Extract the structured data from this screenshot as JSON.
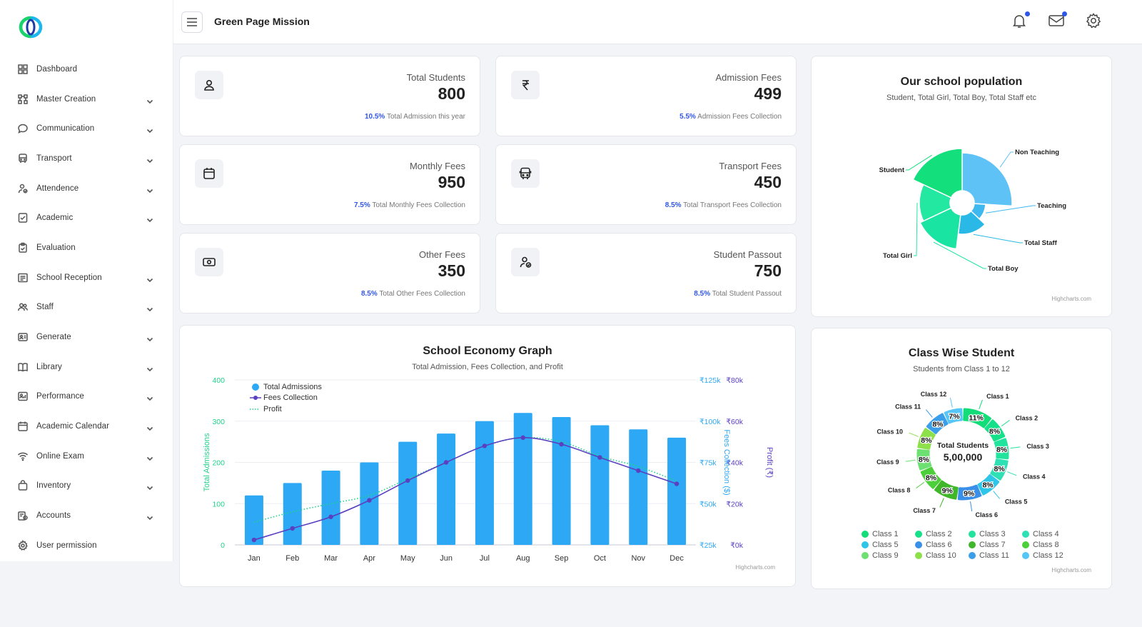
{
  "app": {
    "title": "Green Page Mission"
  },
  "colors": {
    "accent": "#2f56e8",
    "bar": "#2da8f4",
    "fees": "#5a3fc0",
    "profit": "#1fd48a",
    "admAxis": "#1fd48a",
    "feeAxis": "#2da8f4",
    "profitAxis": "#5a3fc0"
  },
  "sidebar": {
    "items": [
      {
        "label": "Dashboard",
        "icon": "grid-icon",
        "chev": false
      },
      {
        "label": "Master Creation",
        "icon": "hierarchy-icon",
        "chev": true
      },
      {
        "label": "Communication",
        "icon": "chat-icon",
        "chev": true
      },
      {
        "label": "Transport",
        "icon": "bus-icon",
        "chev": true
      },
      {
        "label": "Attendence",
        "icon": "user-check-icon",
        "chev": true
      },
      {
        "label": "Academic",
        "icon": "checklist-icon",
        "chev": true
      },
      {
        "label": "Evaluation",
        "icon": "clipboard-icon",
        "chev": false
      },
      {
        "label": "School Reception",
        "icon": "reception-icon",
        "chev": true
      },
      {
        "label": "Staff",
        "icon": "users-icon",
        "chev": true
      },
      {
        "label": "Generate",
        "icon": "id-card-icon",
        "chev": true
      },
      {
        "label": "Library",
        "icon": "book-icon",
        "chev": true
      },
      {
        "label": "Performance",
        "icon": "performance-icon",
        "chev": true
      },
      {
        "label": "Academic Calendar",
        "icon": "calendar-icon",
        "chev": true
      },
      {
        "label": "Online Exam",
        "icon": "wifi-icon",
        "chev": true
      },
      {
        "label": "Inventory",
        "icon": "bag-icon",
        "chev": true
      },
      {
        "label": "Accounts",
        "icon": "accounts-icon",
        "chev": true
      },
      {
        "label": "User permission",
        "icon": "gear-icon",
        "chev": false
      }
    ]
  },
  "stats": [
    {
      "title": "Total Students",
      "value": "800",
      "pct": "10.5%",
      "sub": "Total Admission this year",
      "icon": "user-icon"
    },
    {
      "title": "Admission Fees",
      "value": "499",
      "pct": "5.5%",
      "sub": "Admission Fees Collection",
      "icon": "rupee-icon"
    },
    {
      "title": "Monthly Fees",
      "value": "950",
      "pct": "7.5%",
      "sub": "Total Monthly Fees Collection",
      "icon": "calendar-icon"
    },
    {
      "title": "Transport Fees",
      "value": "450",
      "pct": "8.5%",
      "sub": "Total Transport Fees Collection",
      "icon": "bus-icon"
    },
    {
      "title": "Other Fees",
      "value": "350",
      "pct": "8.5%",
      "sub": "Total Other Fees Collection",
      "icon": "cash-icon"
    },
    {
      "title": "Student Passout",
      "value": "750",
      "pct": "8.5%",
      "sub": "Total Student Passout",
      "icon": "user-check-icon"
    }
  ],
  "credit": "Highcharts.com",
  "chart_data": [
    {
      "type": "bar",
      "title": "School Economy Graph",
      "subtitle": "Total Admission, Fees Collection, and Profit",
      "categories": [
        "Jan",
        "Feb",
        "Mar",
        "Apr",
        "May",
        "Jun",
        "Jul",
        "Aug",
        "Sep",
        "Oct",
        "Nov",
        "Dec"
      ],
      "series": [
        {
          "name": "Total Admissions",
          "kind": "column",
          "values": [
            120,
            150,
            180,
            200,
            250,
            270,
            300,
            320,
            310,
            290,
            280,
            260
          ]
        },
        {
          "name": "Fees Collection",
          "kind": "line",
          "values": [
            28000,
            35000,
            42000,
            52000,
            64000,
            75000,
            85000,
            90000,
            86000,
            78000,
            70000,
            62000
          ]
        },
        {
          "name": "Profit",
          "kind": "dotted-line",
          "values": [
            11000,
            16000,
            20000,
            24000,
            32000,
            40000,
            48000,
            52000,
            50000,
            43000,
            38000,
            31000
          ]
        }
      ],
      "yAxisAdmissions": {
        "label": "Total Admissions",
        "ticks": [
          "0",
          "100",
          "200",
          "300",
          "400"
        ],
        "range": [
          0,
          400
        ]
      },
      "yAxisFees": {
        "label": "Fees Collection ($)",
        "ticks": [
          "₹25k",
          "₹50k",
          "₹75k",
          "₹100k",
          "₹125k"
        ],
        "range": [
          25000,
          125000
        ]
      },
      "yAxisProfit": {
        "label": "Profit (₹)",
        "ticks": [
          "₹0k",
          "₹20k",
          "₹40k",
          "₹60k",
          "₹80k"
        ],
        "range": [
          0,
          80000
        ]
      }
    },
    {
      "type": "pie",
      "title": "Our school population",
      "subtitle": "Student, Total Girl, Total Boy, Total Staff etc",
      "series": [
        {
          "name": "Non Teaching",
          "value": 26,
          "color": "#5ec2f7"
        },
        {
          "name": "Teaching",
          "value": 11,
          "color": "#3fb8ef"
        },
        {
          "name": "Total Staff",
          "value": 15,
          "color": "#2ab9e6"
        },
        {
          "name": "Total Boy",
          "value": 16,
          "color": "#19e4a2"
        },
        {
          "name": "Total Girl",
          "value": 14,
          "color": "#22e8a2"
        },
        {
          "name": "Student",
          "value": 18,
          "color": "#13df7c"
        }
      ],
      "radii": [
        70,
        33,
        44,
        65,
        60,
        76
      ]
    },
    {
      "type": "pie",
      "title": "Class Wise Student",
      "subtitle": "Students from Class 1 to 12",
      "center_label": "Total Students",
      "center_value": "5,00,000",
      "series": [
        {
          "name": "Class 1",
          "value": 11,
          "label": "11%",
          "color": "#12dd78"
        },
        {
          "name": "Class 2",
          "value": 8,
          "label": "8%",
          "color": "#17e08a"
        },
        {
          "name": "Class 3",
          "value": 8,
          "label": "8%",
          "color": "#20e49e"
        },
        {
          "name": "Class 4",
          "value": 8,
          "label": "8%",
          "color": "#2ee0b4"
        },
        {
          "name": "Class 5",
          "value": 8,
          "label": "8%",
          "color": "#2ec6e8"
        },
        {
          "name": "Class 6",
          "value": 9,
          "label": "9%",
          "color": "#3a8fe8"
        },
        {
          "name": "Class 7",
          "value": 9,
          "label": "9%",
          "color": "#40b62a"
        },
        {
          "name": "Class 8",
          "value": 8,
          "label": "8%",
          "color": "#4ccf3a"
        },
        {
          "name": "Class 9",
          "value": 8,
          "label": "8%",
          "color": "#6ce070"
        },
        {
          "name": "Class 10",
          "value": 8,
          "label": "8%",
          "color": "#8ee04a"
        },
        {
          "name": "Class 11",
          "value": 8,
          "label": "8%",
          "color": "#3a9fe8"
        },
        {
          "name": "Class 12",
          "value": 7,
          "label": "7%",
          "color": "#55c6f5"
        }
      ]
    }
  ]
}
